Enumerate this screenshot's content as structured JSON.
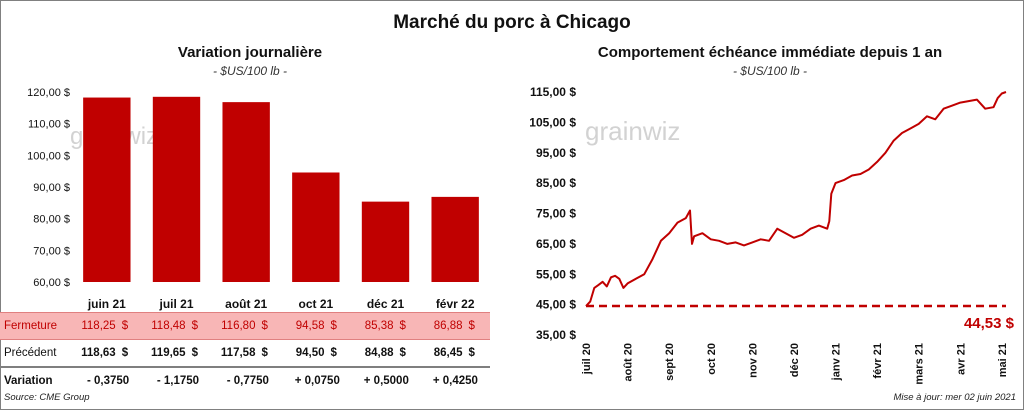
{
  "title": "Marché du porc à Chicago",
  "left": {
    "title": "Variation journalière",
    "unit": "- $US/100 lb -"
  },
  "right": {
    "title": "Comportement échéance immédiate depuis 1 an",
    "unit": "- $US/100 lb -"
  },
  "watermark": "grainwiz",
  "table": {
    "row_labels": [
      "Fermeture",
      "Précédent",
      "Variation"
    ],
    "currency": "$",
    "close": [
      "118,25",
      "118,48",
      "116,80",
      "94,58",
      "85,38",
      "86,88"
    ],
    "previous": [
      "118,63",
      "119,65",
      "117,58",
      "94,50",
      "84,88",
      "86,45"
    ],
    "change": [
      "- 0,3750",
      "- 1,1750",
      "- 0,7750",
      "+ 0,0750",
      "+ 0,5000",
      "+ 0,4250"
    ]
  },
  "footer": {
    "source": "Source: CME Group",
    "updated": "Mise à jour: mer 02 juin 2021"
  },
  "colors": {
    "bar": "#c00000",
    "line": "#c00000",
    "positive": "#1a8a1a",
    "negative": "#c00000"
  },
  "chart_data": [
    {
      "type": "bar",
      "title": "Variation journalière",
      "categories": [
        "juin 21",
        "juil 21",
        "août 21",
        "oct 21",
        "déc 21",
        "févr 22"
      ],
      "values": [
        118.25,
        118.48,
        116.8,
        94.58,
        85.38,
        86.88
      ],
      "ylim": [
        60,
        120
      ],
      "yticks": [
        60,
        70,
        80,
        90,
        100,
        110,
        120
      ],
      "ytick_labels": [
        "60,00 $",
        "70,00 $",
        "80,00 $",
        "90,00 $",
        "100,00 $",
        "110,00 $",
        "120,00 $"
      ],
      "grid": false
    },
    {
      "type": "line",
      "title": "Comportement échéance immédiate depuis 1 an",
      "ylim": [
        35,
        115
      ],
      "yticks": [
        35,
        45,
        55,
        65,
        75,
        85,
        95,
        105,
        115
      ],
      "ytick_labels": [
        "35,00 $",
        "45,00 $",
        "55,00 $",
        "65,00 $",
        "75,00 $",
        "85,00 $",
        "95,00 $",
        "105,00 $",
        "115,00 $"
      ],
      "xtick_labels": [
        "juil 20",
        "août 20",
        "sept 20",
        "oct 20",
        "nov 20",
        "déc 20",
        "janv 21",
        "févr 21",
        "mars 21",
        "avr 21",
        "mai 21"
      ],
      "reference_line": {
        "value": 44.53,
        "label": "44,53 $"
      },
      "x": [
        0,
        0.1,
        0.2,
        0.3,
        0.4,
        0.5,
        0.6,
        0.7,
        0.8,
        0.9,
        1.0,
        1.2,
        1.4,
        1.6,
        1.8,
        2.0,
        2.2,
        2.4,
        2.5,
        2.55,
        2.6,
        2.8,
        3.0,
        3.2,
        3.4,
        3.6,
        3.8,
        4.0,
        4.2,
        4.4,
        4.6,
        4.8,
        5.0,
        5.2,
        5.4,
        5.6,
        5.8,
        5.85,
        5.9,
        6.0,
        6.2,
        6.4,
        6.6,
        6.8,
        7.0,
        7.2,
        7.4,
        7.6,
        7.8,
        8.0,
        8.2,
        8.4,
        8.6,
        8.8,
        9.0,
        9.2,
        9.4,
        9.6,
        9.8,
        9.9,
        10.0,
        10.1
      ],
      "values": [
        44.5,
        46.0,
        50.5,
        51.5,
        52.5,
        51.0,
        54.0,
        54.5,
        53.5,
        50.5,
        52.0,
        53.5,
        55.0,
        60.0,
        66.0,
        68.5,
        72.0,
        73.5,
        76.0,
        65.0,
        67.5,
        68.5,
        66.5,
        66.0,
        65.0,
        65.5,
        64.5,
        65.5,
        66.5,
        66.0,
        70.0,
        68.5,
        67.0,
        68.0,
        70.0,
        71.0,
        70.0,
        72.5,
        81.5,
        85.0,
        86.0,
        87.5,
        88.0,
        89.5,
        92.0,
        95.0,
        99.0,
        101.5,
        103.0,
        104.5,
        107.0,
        106.0,
        109.5,
        110.5,
        111.5,
        112.0,
        112.5,
        109.5,
        110.0,
        113.0,
        114.5,
        115.0
      ]
    }
  ]
}
